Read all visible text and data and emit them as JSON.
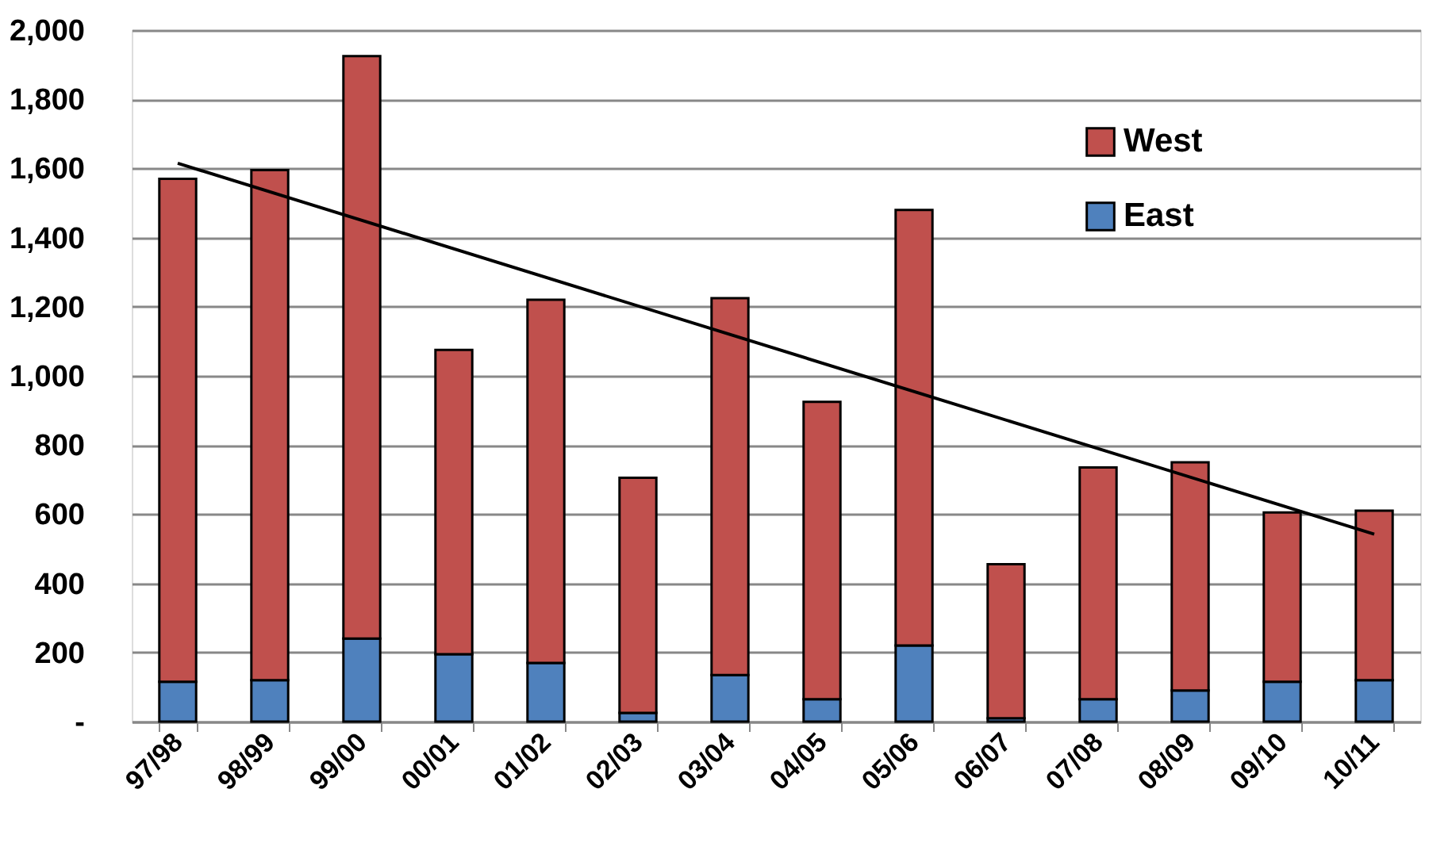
{
  "chart_data": {
    "type": "bar",
    "stacked": true,
    "categories": [
      "97/98",
      "98/99",
      "99/00",
      "00/01",
      "01/02",
      "02/03",
      "03/04",
      "04/05",
      "05/06",
      "06/07",
      "07/08",
      "08/09",
      "09/10",
      "10/11"
    ],
    "series": [
      {
        "name": "East",
        "color": "#4f81bd",
        "values": [
          115,
          120,
          240,
          195,
          170,
          25,
          135,
          65,
          220,
          10,
          65,
          90,
          115,
          120
        ]
      },
      {
        "name": "West",
        "color": "#c0504d",
        "values": [
          1455,
          1475,
          1685,
          880,
          1050,
          680,
          1090,
          860,
          1260,
          445,
          670,
          660,
          490,
          490
        ]
      },
      {
        "type": "line",
        "color": "#000000",
        "x": [
          "97/98",
          "10/11"
        ],
        "values": [
          1615,
          542
        ]
      }
    ],
    "ylim": [
      0,
      2000
    ],
    "yticks": [
      {
        "value": 0,
        "label": "-"
      },
      200,
      400,
      600,
      800,
      {
        "value": 1000,
        "label": "1,000"
      },
      {
        "value": 1200,
        "label": "1,200"
      },
      {
        "value": 1400,
        "label": "1,400"
      },
      {
        "value": 1600,
        "label": "1,600"
      },
      {
        "value": 1800,
        "label": "1,800"
      },
      {
        "value": 2000,
        "label": "2,000"
      }
    ],
    "grid": "y",
    "legend": "top right"
  }
}
